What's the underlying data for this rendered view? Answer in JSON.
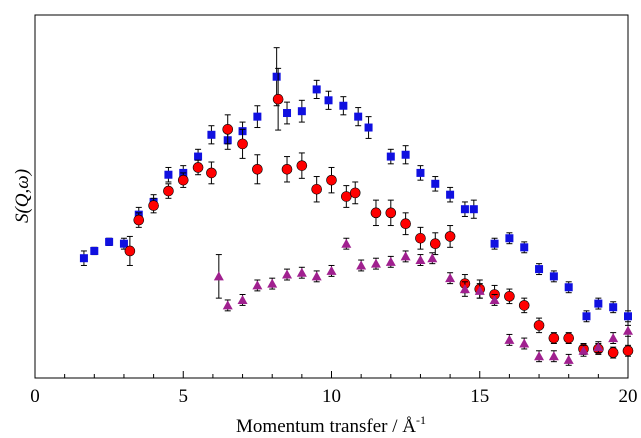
{
  "chart_data": {
    "type": "scatter",
    "xlabel": "Momentum transfer / Å",
    "xlabel_sup": "-1",
    "ylabel": "S(Q,ω)",
    "xlim": [
      0,
      20
    ],
    "ylim": [
      0,
      1
    ],
    "x_ticks": [
      "0",
      "5",
      "10",
      "15",
      "20"
    ],
    "grid": false,
    "y_tick_labels": false,
    "series": [
      {
        "marker": "square",
        "color": "#1010e0",
        "points": [
          [
            1.65,
            0.33,
            0.02
          ],
          [
            2.0,
            0.35,
            0.01
          ],
          [
            2.5,
            0.375,
            0.01
          ],
          [
            3.0,
            0.37,
            0.015
          ],
          [
            3.5,
            0.45,
            0.02
          ],
          [
            4.0,
            0.485,
            0.02
          ],
          [
            4.5,
            0.56,
            0.02
          ],
          [
            5.0,
            0.565,
            0.02
          ],
          [
            5.5,
            0.61,
            0.02
          ],
          [
            5.95,
            0.67,
            0.025
          ],
          [
            6.5,
            0.655,
            0.025
          ],
          [
            7.0,
            0.68,
            0.025
          ],
          [
            7.5,
            0.72,
            0.03
          ],
          [
            8.15,
            0.83,
            0.08
          ],
          [
            8.5,
            0.73,
            0.03
          ],
          [
            9.0,
            0.735,
            0.03
          ],
          [
            9.5,
            0.795,
            0.025
          ],
          [
            9.9,
            0.765,
            0.025
          ],
          [
            10.4,
            0.75,
            0.025
          ],
          [
            10.9,
            0.72,
            0.025
          ],
          [
            11.25,
            0.69,
            0.03
          ],
          [
            12.0,
            0.61,
            0.02
          ],
          [
            12.5,
            0.615,
            0.025
          ],
          [
            13.0,
            0.565,
            0.02
          ],
          [
            13.5,
            0.535,
            0.02
          ],
          [
            14.0,
            0.505,
            0.02
          ],
          [
            14.5,
            0.465,
            0.02
          ],
          [
            14.8,
            0.465,
            0.025
          ],
          [
            15.5,
            0.37,
            0.015
          ],
          [
            16.0,
            0.385,
            0.015
          ],
          [
            16.5,
            0.36,
            0.015
          ],
          [
            17.0,
            0.3,
            0.015
          ],
          [
            17.5,
            0.28,
            0.015
          ],
          [
            18.0,
            0.25,
            0.015
          ],
          [
            18.6,
            0.17,
            0.015
          ],
          [
            19.0,
            0.205,
            0.015
          ],
          [
            19.5,
            0.195,
            0.015
          ],
          [
            20.0,
            0.17,
            0.015
          ]
        ]
      },
      {
        "marker": "circle",
        "color": "#ff0000",
        "points": [
          [
            3.2,
            0.35,
            0.04
          ],
          [
            3.5,
            0.435,
            0.02
          ],
          [
            4.0,
            0.475,
            0.02
          ],
          [
            4.5,
            0.515,
            0.02
          ],
          [
            5.0,
            0.545,
            0.02
          ],
          [
            5.5,
            0.58,
            0.02
          ],
          [
            5.95,
            0.565,
            0.03
          ],
          [
            6.5,
            0.685,
            0.04
          ],
          [
            7.0,
            0.645,
            0.04
          ],
          [
            7.5,
            0.575,
            0.04
          ],
          [
            8.2,
            0.768,
            0.085
          ],
          [
            8.5,
            0.575,
            0.035
          ],
          [
            9.0,
            0.585,
            0.035
          ],
          [
            9.5,
            0.52,
            0.035
          ],
          [
            10.0,
            0.545,
            0.035
          ],
          [
            10.5,
            0.5,
            0.03
          ],
          [
            10.8,
            0.51,
            0.03
          ],
          [
            11.5,
            0.455,
            0.035
          ],
          [
            12.0,
            0.455,
            0.035
          ],
          [
            12.5,
            0.425,
            0.03
          ],
          [
            13.0,
            0.385,
            0.03
          ],
          [
            13.5,
            0.37,
            0.03
          ],
          [
            14.0,
            0.39,
            0.03
          ],
          [
            14.5,
            0.26,
            0.025
          ],
          [
            15.0,
            0.245,
            0.025
          ],
          [
            15.5,
            0.23,
            0.025
          ],
          [
            16.0,
            0.225,
            0.02
          ],
          [
            16.5,
            0.2,
            0.02
          ],
          [
            17.0,
            0.145,
            0.02
          ],
          [
            17.5,
            0.11,
            0.015
          ],
          [
            18.0,
            0.11,
            0.015
          ],
          [
            18.5,
            0.08,
            0.015
          ],
          [
            19.0,
            0.08,
            0.015
          ],
          [
            19.5,
            0.07,
            0.015
          ],
          [
            20.0,
            0.075,
            0.015
          ]
        ]
      },
      {
        "marker": "triangle",
        "color": "#a0208f",
        "points": [
          [
            6.2,
            0.28,
            0.06
          ],
          [
            6.5,
            0.2,
            0.015
          ],
          [
            7.0,
            0.215,
            0.015
          ],
          [
            7.5,
            0.255,
            0.015
          ],
          [
            8.0,
            0.26,
            0.015
          ],
          [
            8.5,
            0.285,
            0.015
          ],
          [
            9.0,
            0.29,
            0.015
          ],
          [
            9.5,
            0.28,
            0.015
          ],
          [
            10.0,
            0.295,
            0.015
          ],
          [
            10.5,
            0.37,
            0.015
          ],
          [
            11.0,
            0.31,
            0.015
          ],
          [
            11.5,
            0.315,
            0.015
          ],
          [
            12.0,
            0.32,
            0.015
          ],
          [
            12.5,
            0.335,
            0.015
          ],
          [
            13.0,
            0.325,
            0.015
          ],
          [
            13.4,
            0.33,
            0.015
          ],
          [
            14.0,
            0.275,
            0.015
          ],
          [
            14.5,
            0.245,
            0.02
          ],
          [
            15.0,
            0.24,
            0.02
          ],
          [
            15.5,
            0.215,
            0.015
          ],
          [
            16.0,
            0.105,
            0.015
          ],
          [
            16.5,
            0.095,
            0.015
          ],
          [
            17.0,
            0.06,
            0.015
          ],
          [
            17.5,
            0.06,
            0.015
          ],
          [
            18.0,
            0.05,
            0.015
          ],
          [
            18.5,
            0.075,
            0.015
          ],
          [
            19.0,
            0.085,
            0.015
          ],
          [
            19.5,
            0.11,
            0.015
          ],
          [
            20.0,
            0.13,
            0.015
          ]
        ]
      }
    ]
  }
}
